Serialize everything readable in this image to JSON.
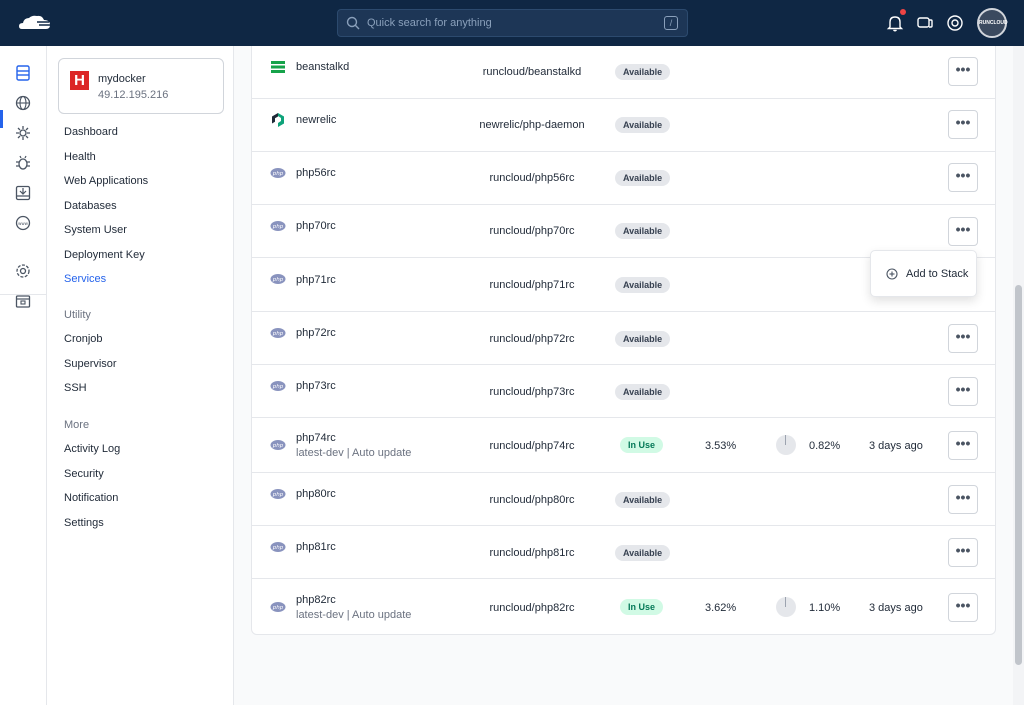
{
  "topbar": {
    "search_placeholder": "Quick search for anything",
    "search_shortcut": "/",
    "avatar_text": "RUNCLOUD"
  },
  "server": {
    "name": "mydocker",
    "ip": "49.12.195.216"
  },
  "nav": {
    "items": [
      "Dashboard",
      "Health",
      "Web Applications",
      "Databases",
      "System User",
      "Deployment Key",
      "Services"
    ],
    "active": "Services",
    "utility_heading": "Utility",
    "utility": [
      "Cronjob",
      "Supervisor",
      "SSH"
    ],
    "more_heading": "More",
    "more": [
      "Activity Log",
      "Security",
      "Notification",
      "Settings"
    ]
  },
  "services": [
    {
      "name": "beanstalkd",
      "sub": "",
      "image": "runcloud/beanstalkd",
      "status": "Available",
      "icon": "beanstalkd-icon",
      "cpu": "",
      "mem": "",
      "updated": ""
    },
    {
      "name": "newrelic",
      "sub": "",
      "image": "newrelic/php-daemon",
      "status": "Available",
      "icon": "newrelic-icon",
      "cpu": "",
      "mem": "",
      "updated": ""
    },
    {
      "name": "php56rc",
      "sub": "",
      "image": "runcloud/php56rc",
      "status": "Available",
      "icon": "php-icon",
      "cpu": "",
      "mem": "",
      "updated": ""
    },
    {
      "name": "php70rc",
      "sub": "",
      "image": "runcloud/php70rc",
      "status": "Available",
      "icon": "php-icon",
      "cpu": "",
      "mem": "",
      "updated": ""
    },
    {
      "name": "php71rc",
      "sub": "",
      "image": "runcloud/php71rc",
      "status": "Available",
      "icon": "php-icon",
      "cpu": "",
      "mem": "",
      "updated": ""
    },
    {
      "name": "php72rc",
      "sub": "",
      "image": "runcloud/php72rc",
      "status": "Available",
      "icon": "php-icon",
      "cpu": "",
      "mem": "",
      "updated": ""
    },
    {
      "name": "php73rc",
      "sub": "",
      "image": "runcloud/php73rc",
      "status": "Available",
      "icon": "php-icon",
      "cpu": "",
      "mem": "",
      "updated": ""
    },
    {
      "name": "php74rc",
      "sub": "latest-dev | Auto update",
      "image": "runcloud/php74rc",
      "status": "In Use",
      "icon": "php-icon",
      "cpu": "3.53%",
      "mem": "0.82%",
      "updated": "3 days ago"
    },
    {
      "name": "php80rc",
      "sub": "",
      "image": "runcloud/php80rc",
      "status": "Available",
      "icon": "php-icon",
      "cpu": "",
      "mem": "",
      "updated": ""
    },
    {
      "name": "php81rc",
      "sub": "",
      "image": "runcloud/php81rc",
      "status": "Available",
      "icon": "php-icon",
      "cpu": "",
      "mem": "",
      "updated": ""
    },
    {
      "name": "php82rc",
      "sub": "latest-dev | Auto update",
      "image": "runcloud/php82rc",
      "status": "In Use",
      "icon": "php-icon",
      "cpu": "3.62%",
      "mem": "1.10%",
      "updated": "3 days ago"
    }
  ],
  "dropdown": {
    "add_label": "Add to Stack"
  },
  "colors": {
    "topbar": "#0f2744",
    "accent": "#2563eb",
    "in_use": "#047857",
    "bell_dot": "#ef4444"
  }
}
